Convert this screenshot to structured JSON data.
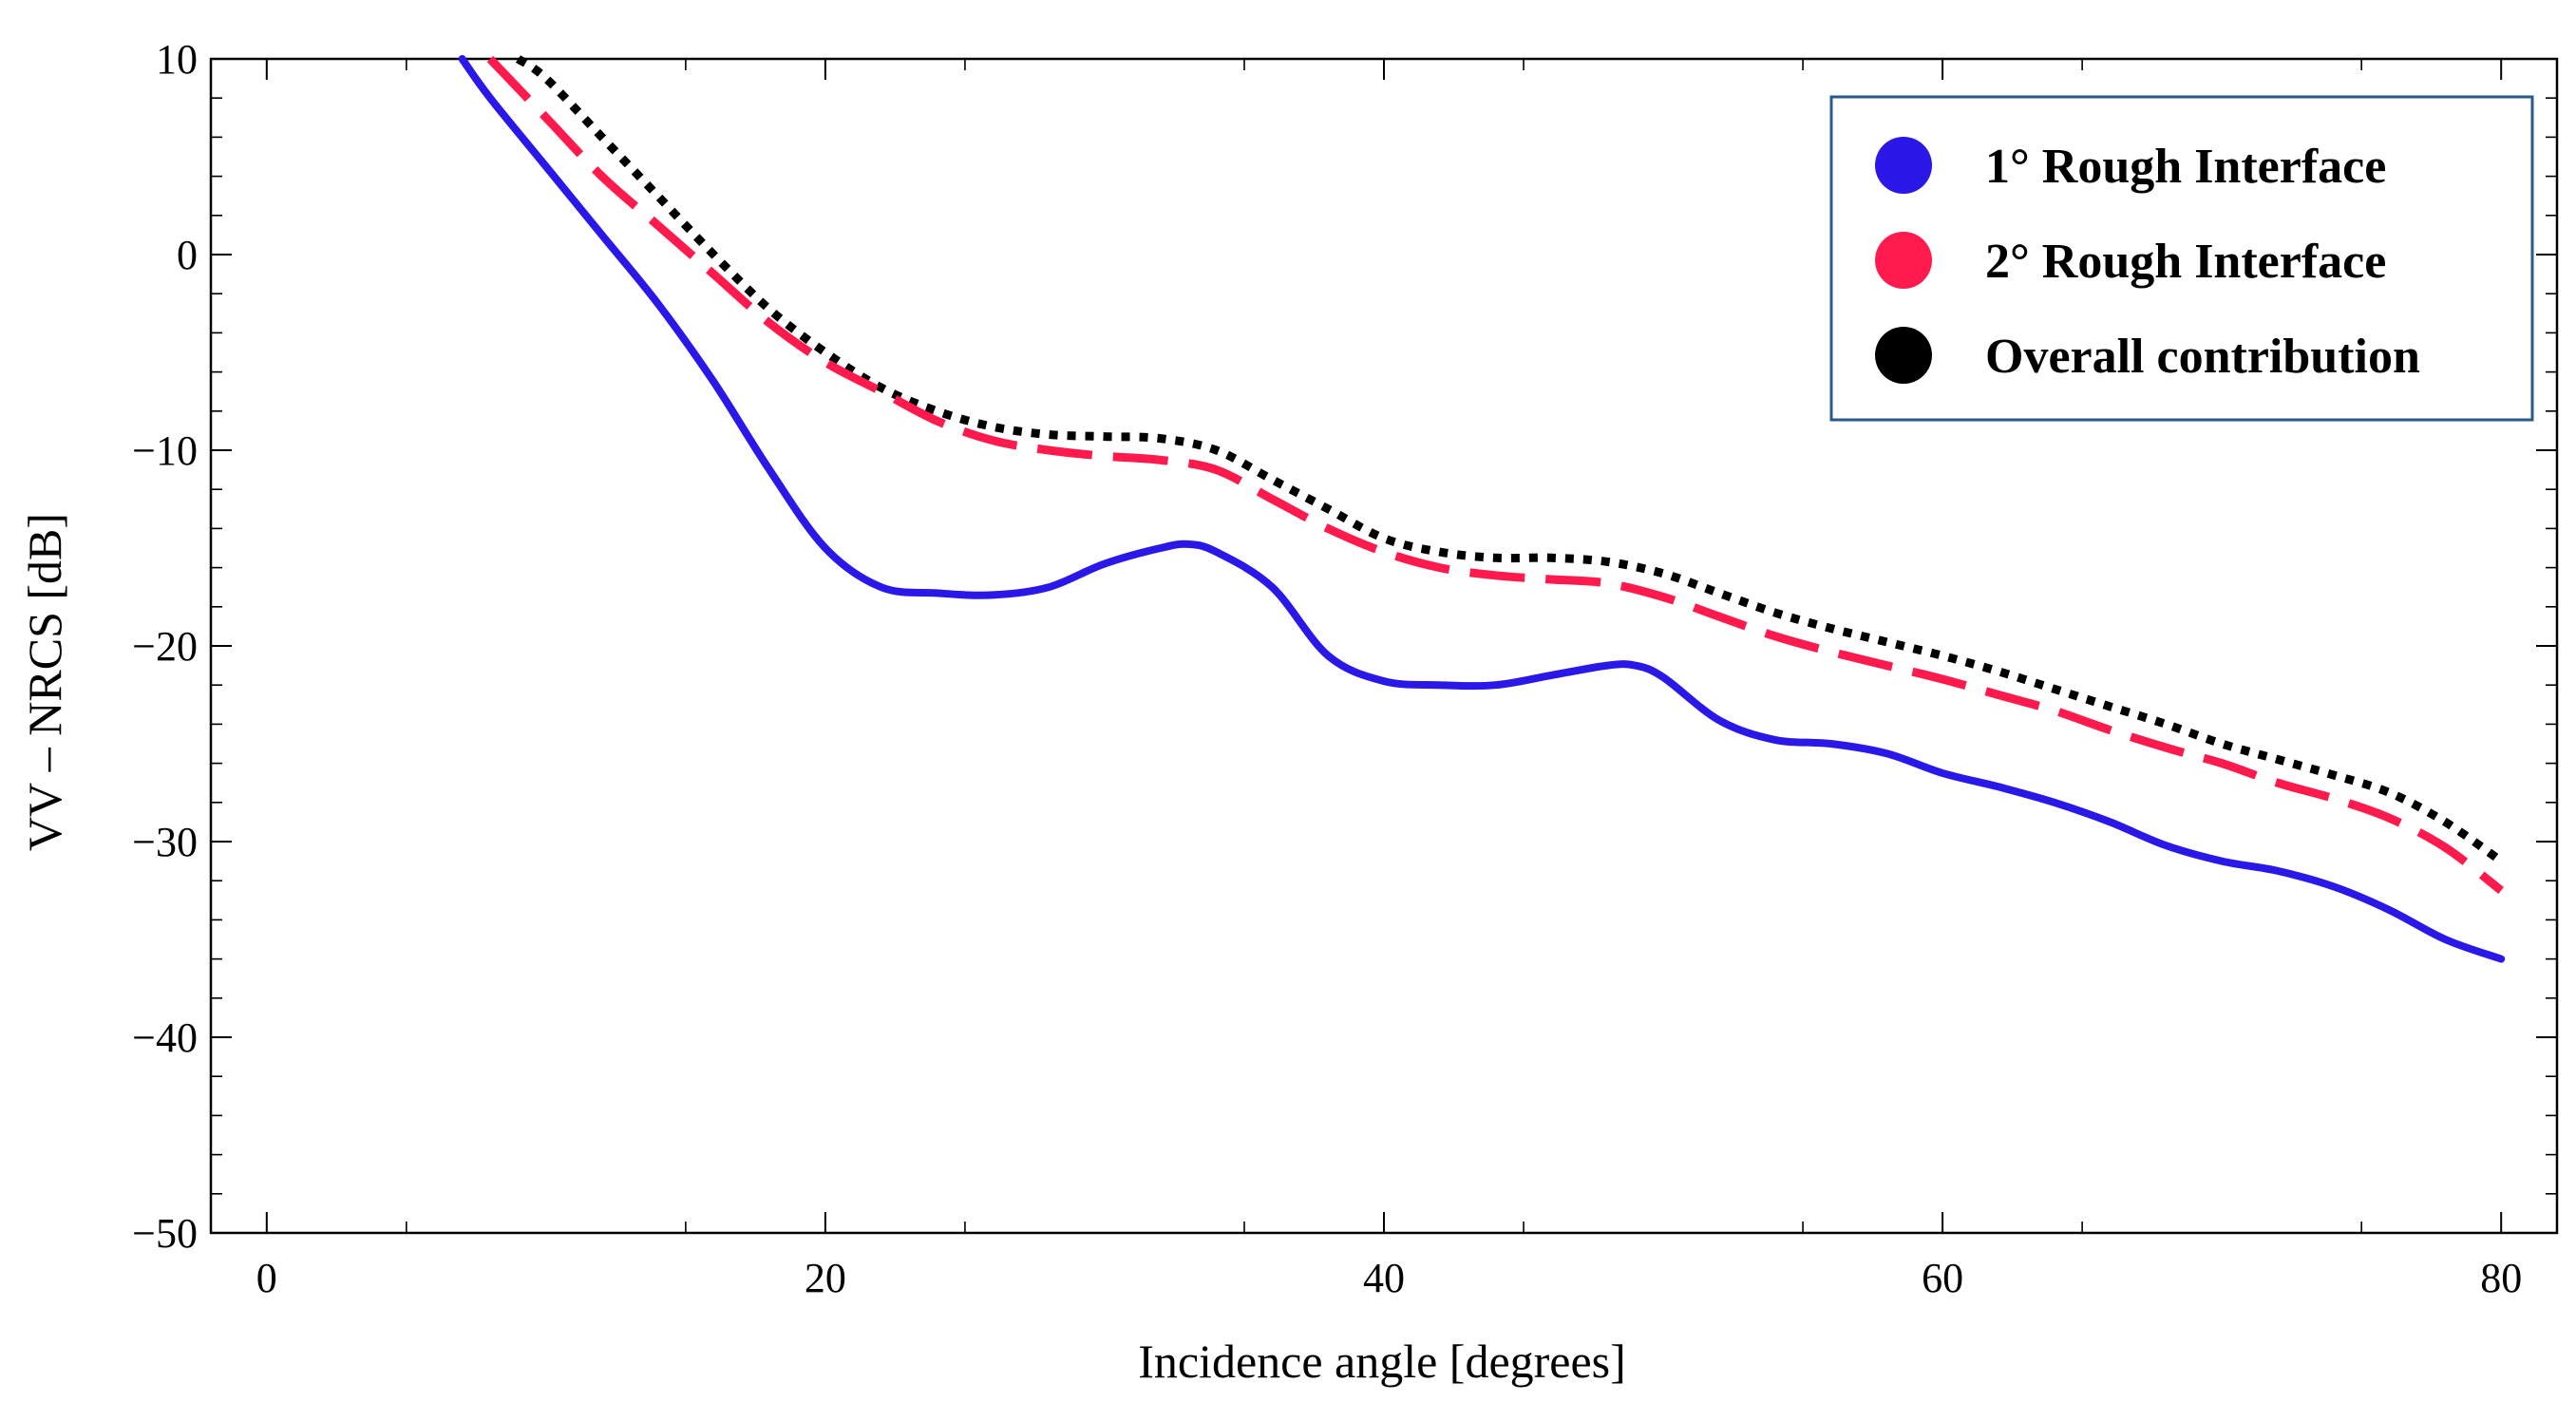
{
  "chart_data": {
    "type": "line",
    "title": "",
    "xlabel": "Incidence angle [degrees]",
    "ylabel": "VV – NRCS [dB]",
    "xlim": [
      -2,
      82
    ],
    "ylim": [
      -50,
      10
    ],
    "xticks": [
      0,
      20,
      40,
      60,
      80
    ],
    "xtick_labels": [
      "0",
      "20",
      "40",
      "60",
      "80"
    ],
    "yticks": [
      10,
      0,
      -10,
      -20,
      -30,
      -40,
      -50
    ],
    "ytick_labels": [
      "10",
      "0",
      "−10",
      "−20",
      "−30",
      "−40",
      "−50"
    ],
    "legend_position": "top-right",
    "series": [
      {
        "name": "1° Rough Interface",
        "color": "#2a18e8",
        "style": "solid",
        "x": [
          7,
          8,
          10,
          12,
          14,
          16,
          18,
          20,
          22,
          24,
          26,
          28,
          30,
          32,
          33,
          34,
          36,
          38,
          40,
          42,
          44,
          46,
          48,
          49,
          50,
          52,
          54,
          56,
          58,
          60,
          62,
          64,
          66,
          68,
          70,
          72,
          74,
          76,
          78,
          80
        ],
        "y": [
          10,
          8,
          4.5,
          1,
          -2.5,
          -6.5,
          -11,
          -15,
          -17,
          -17.3,
          -17.4,
          -17,
          -15.8,
          -15,
          -14.8,
          -15.2,
          -17,
          -20.5,
          -21.8,
          -22,
          -22,
          -21.5,
          -21,
          -21,
          -21.6,
          -23.8,
          -24.8,
          -25,
          -25.5,
          -26.5,
          -27.2,
          -28,
          -29,
          -30.2,
          -31,
          -31.5,
          -32.3,
          -33.5,
          -35,
          -36
        ]
      },
      {
        "name": "2° Rough Interface",
        "color": "#ff1a4d",
        "style": "dashed",
        "x": [
          8,
          10,
          12,
          14,
          16,
          18,
          20,
          22,
          24,
          26,
          28,
          30,
          32,
          34,
          36,
          38,
          40,
          42,
          44,
          46,
          48,
          50,
          52,
          54,
          56,
          58,
          60,
          62,
          64,
          66,
          68,
          70,
          72,
          74,
          76,
          78,
          80
        ],
        "y": [
          10,
          7,
          4,
          1.5,
          -1,
          -3.5,
          -5.5,
          -7,
          -8.5,
          -9.5,
          -10,
          -10.3,
          -10.5,
          -11,
          -12.5,
          -14,
          -15.2,
          -16,
          -16.4,
          -16.6,
          -16.8,
          -17.5,
          -18.5,
          -19.5,
          -20.3,
          -21,
          -21.7,
          -22.5,
          -23.3,
          -24.3,
          -25.2,
          -26,
          -27,
          -27.8,
          -28.8,
          -30.3,
          -32.5
        ]
      },
      {
        "name": "Overall contribution",
        "color": "#000000",
        "style": "dotted",
        "x": [
          9,
          10,
          12,
          14,
          16,
          18,
          20,
          22,
          24,
          26,
          28,
          30,
          32,
          34,
          36,
          38,
          40,
          42,
          44,
          46,
          48,
          50,
          52,
          54,
          56,
          58,
          60,
          62,
          64,
          66,
          68,
          70,
          72,
          74,
          76,
          78,
          80
        ],
        "y": [
          10,
          9,
          6,
          3,
          0,
          -2.8,
          -5,
          -6.8,
          -8,
          -8.8,
          -9.2,
          -9.3,
          -9.4,
          -10,
          -11.5,
          -13,
          -14.5,
          -15.2,
          -15.5,
          -15.5,
          -15.7,
          -16.3,
          -17.3,
          -18.3,
          -19.1,
          -19.8,
          -20.5,
          -21.3,
          -22.2,
          -23.1,
          -24,
          -25,
          -25.8,
          -26.6,
          -27.5,
          -29,
          -31
        ]
      }
    ]
  }
}
